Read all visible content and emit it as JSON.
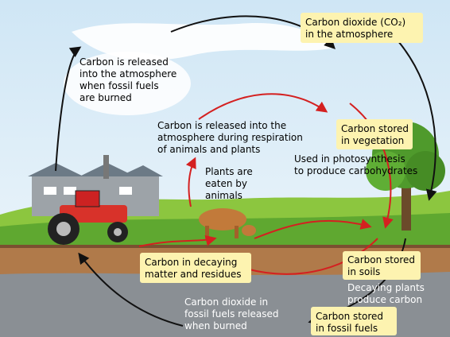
{
  "labels": [
    {
      "lines": [
        "Carbon dioxide (CO₂)",
        "in the atmosphere"
      ]
    },
    {
      "lines": [
        "Carbon is released",
        "into the atmosphere",
        "when fossil fuels",
        "are burned"
      ]
    },
    {
      "lines": [
        "Carbon is released into the",
        "atmosphere during respiration",
        "of animals and plants"
      ]
    },
    {
      "lines": [
        "Carbon stored",
        "in vegetation"
      ]
    },
    {
      "lines": [
        "Used in photosynthesis",
        "to produce carbohydrates"
      ]
    },
    {
      "lines": [
        "Plants are",
        "eaten by",
        "animals"
      ]
    },
    {
      "lines": [
        "Carbon in decaying",
        "matter and residues"
      ]
    },
    {
      "lines": [
        "Carbon stored",
        "in soils"
      ]
    },
    {
      "lines": [
        "Decaying plants",
        "produce carbon"
      ]
    },
    {
      "lines": [
        "Carbon dioxide in",
        "fossil fuels released",
        "when burned"
      ]
    },
    {
      "lines": [
        "Carbon stored",
        "in fossil fuels"
      ]
    }
  ]
}
